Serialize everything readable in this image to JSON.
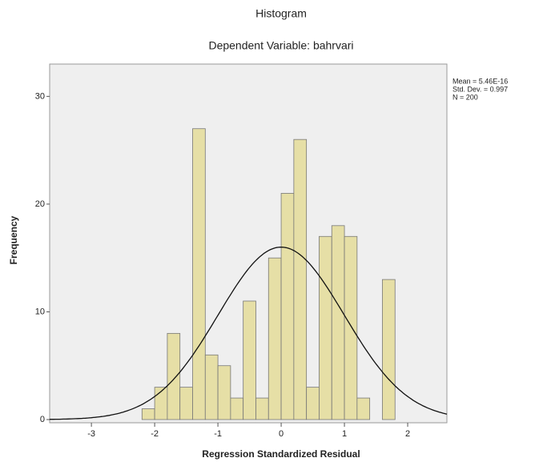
{
  "chart_data": {
    "type": "histogram",
    "title": "Histogram",
    "subtitle": "Dependent Variable: bahrvari",
    "x_label": "Regression Standardized Residual",
    "y_label": "Frequency",
    "bins": [
      -2.2,
      -2.0,
      -1.8,
      -1.6,
      -1.4,
      -1.2,
      -1.0,
      -0.8,
      -0.6,
      -0.4,
      -0.2,
      0,
      0.2,
      0.4,
      0.6,
      0.8,
      1.0,
      1.2,
      1.4,
      1.6,
      1.8
    ],
    "values": [
      1,
      3,
      8,
      3,
      27,
      6,
      5,
      2,
      11,
      2,
      15,
      21,
      26,
      3,
      17,
      18,
      17,
      2,
      0,
      13
    ],
    "color": "#e6dfa6",
    "xlim": [
      -3.66,
      2.62
    ],
    "xticks": [
      -3,
      -2,
      -1,
      0,
      1,
      2
    ],
    "ylim": [
      0,
      33
    ],
    "yticks": [
      0,
      10,
      20,
      30
    ],
    "stats": [
      {
        "value": 5.46e-16,
        "label": "Mean = 5.46E-16"
      },
      {
        "value": 0.997,
        "label": "Std. Dev. = 0.997"
      },
      {
        "value": 200,
        "label": "N = 200"
      }
    ]
  }
}
